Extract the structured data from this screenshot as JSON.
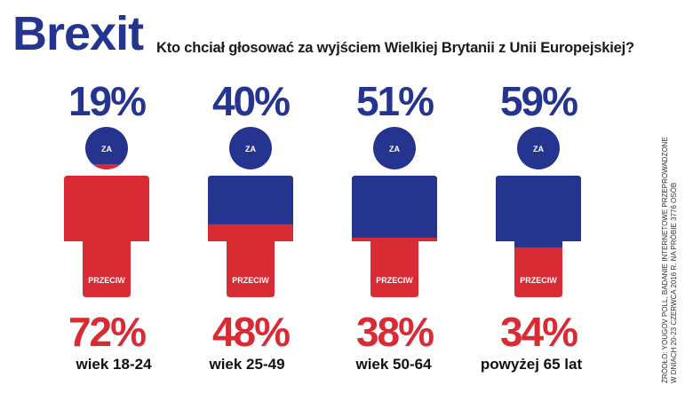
{
  "header": {
    "brand": "Brexit",
    "question": "Kto chciał głosować za wyjściem Wielkiej Brytanii z Unii Europejskiej?"
  },
  "source": "ŹRÓDŁO: YOUGOV POLL, BADANIE INTERNETOWE PRZEPROWADZONE\nW DNIACH 20-23 CZERWCA 2016 r. NA PRÓBIE 3776 OSÓB",
  "labels": {
    "za": "ZA",
    "przeciw": "PRZECIW"
  },
  "colors": {
    "blue": "#25358f",
    "red": "#d92b34"
  },
  "chart_data": {
    "type": "bar",
    "title": "Kto chciał głosować za wyjściem Wielkiej Brytanii z Unii Europejskiej?",
    "categories": [
      "wiek 18-24",
      "wiek 25-49",
      "wiek 50-64",
      "powyżej 65 lat"
    ],
    "series": [
      {
        "name": "ZA",
        "values": [
          19,
          40,
          51,
          59
        ],
        "labels": [
          "19%",
          "40%",
          "51%",
          "59%"
        ]
      },
      {
        "name": "PRZECIW",
        "values": [
          72,
          48,
          38,
          34
        ],
        "labels": [
          "72%",
          "48%",
          "38%",
          "34%"
        ]
      }
    ],
    "ylim": [
      0,
      100
    ]
  }
}
